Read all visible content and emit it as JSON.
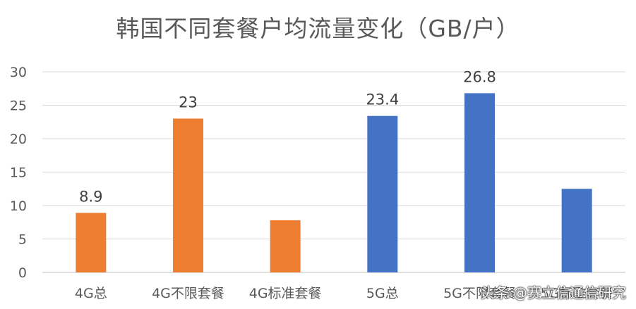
{
  "chart_data": {
    "type": "bar",
    "title": "韩国不同套餐户均流量变化（GB/户）",
    "xlabel": "",
    "ylabel": "",
    "categories": [
      "4G总",
      "4G不限套餐",
      "4G标准套餐",
      "5G总",
      "5G不限套餐",
      "5G标准套餐"
    ],
    "values": [
      8.9,
      23,
      7.8,
      23.4,
      26.8,
      12.5
    ],
    "data_labels": [
      "8.9",
      "23",
      "",
      "23.4",
      "26.8",
      ""
    ],
    "bar_colors": [
      "#ED7D31",
      "#ED7D31",
      "#ED7D31",
      "#4472C4",
      "#4472C4",
      "#4472C4"
    ],
    "ylim": [
      0,
      30
    ],
    "yticks": [
      0,
      5,
      10,
      15,
      20,
      25,
      30
    ],
    "grid": true,
    "legend": "none"
  },
  "watermark": "头条 @赛立信通信研究"
}
